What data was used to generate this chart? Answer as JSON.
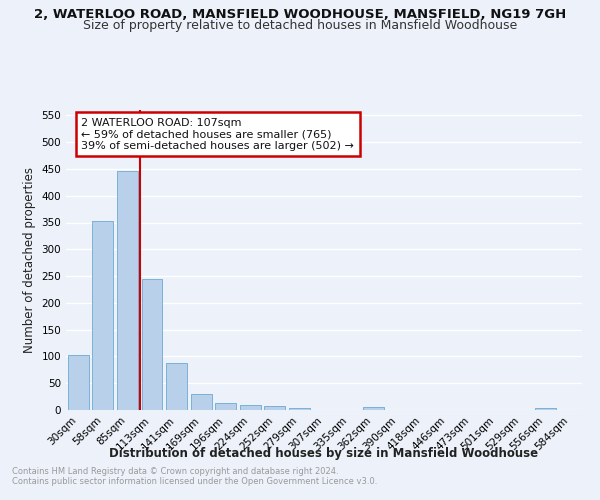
{
  "title1": "2, WATERLOO ROAD, MANSFIELD WOODHOUSE, MANSFIELD, NG19 7GH",
  "title2": "Size of property relative to detached houses in Mansfield Woodhouse",
  "xlabel": "Distribution of detached houses by size in Mansfield Woodhouse",
  "ylabel": "Number of detached properties",
  "footer1": "Contains HM Land Registry data © Crown copyright and database right 2024.",
  "footer2": "Contains public sector information licensed under the Open Government Licence v3.0.",
  "bin_labels": [
    "30sqm",
    "58sqm",
    "85sqm",
    "113sqm",
    "141sqm",
    "169sqm",
    "196sqm",
    "224sqm",
    "252sqm",
    "279sqm",
    "307sqm",
    "335sqm",
    "362sqm",
    "390sqm",
    "418sqm",
    "446sqm",
    "473sqm",
    "501sqm",
    "529sqm",
    "556sqm",
    "584sqm"
  ],
  "bar_values": [
    103,
    353,
    447,
    245,
    88,
    30,
    14,
    9,
    7,
    4,
    0,
    0,
    6,
    0,
    0,
    0,
    0,
    0,
    0,
    4,
    0
  ],
  "bar_color": "#b8d0ea",
  "bar_edge_color": "#6aaad4",
  "vline_color": "#cc0000",
  "annotation_text": "2 WATERLOO ROAD: 107sqm\n← 59% of detached houses are smaller (765)\n39% of semi-detached houses are larger (502) →",
  "annotation_box_color": "#ffffff",
  "annotation_box_edge": "#cc0000",
  "ylim": [
    0,
    560
  ],
  "yticks": [
    0,
    50,
    100,
    150,
    200,
    250,
    300,
    350,
    400,
    450,
    500,
    550
  ],
  "bg_color": "#edf2fa",
  "grid_color": "#ffffff",
  "title1_fontsize": 9.5,
  "title2_fontsize": 9,
  "axis_label_fontsize": 8.5,
  "tick_fontsize": 7.5,
  "footer_fontsize": 6.0
}
